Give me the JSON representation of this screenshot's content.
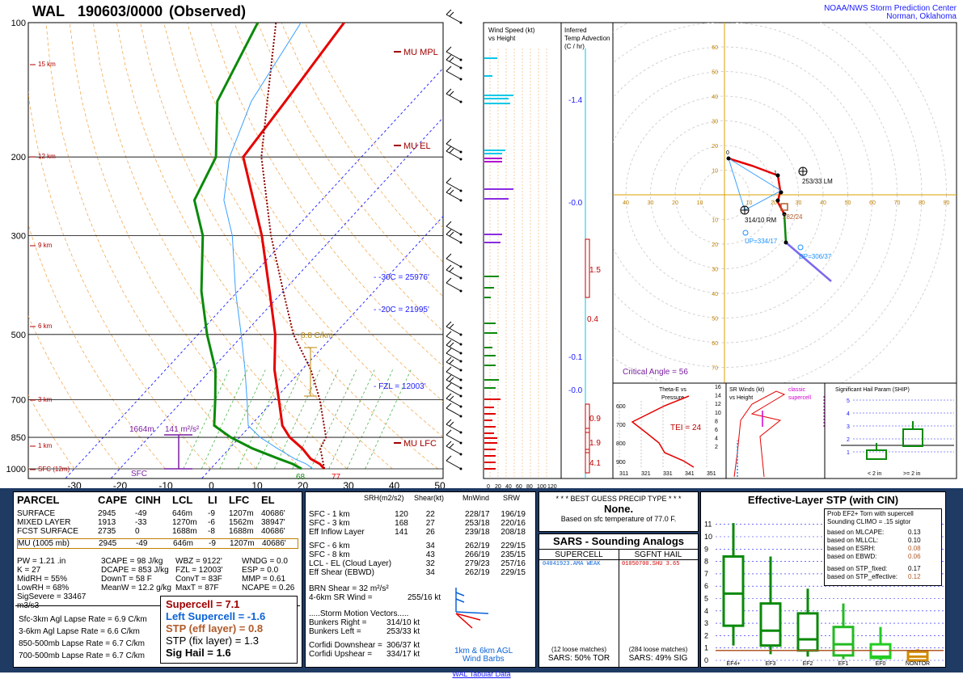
{
  "header": {
    "station": "WAL",
    "datetime": "190603/0000",
    "observed": "(Observed)",
    "org_line1": "NOAA/NWS Storm Prediction Center",
    "org_line2": "Norman, Oklahoma"
  },
  "colors": {
    "temperature": "#e60000",
    "dewpoint": "#0a8a0a",
    "parcel": "#8b0000",
    "hodo_axes": "#d8a000",
    "wind_blue": "#1a1aff",
    "bg_panel": "#1f3a63"
  },
  "chart_data": [
    {
      "type": "line",
      "title": "Skew-T",
      "y_pressure_labels": [
        "100",
        "200",
        "300",
        "500",
        "700",
        "850",
        "1000"
      ],
      "y_height_labels": [
        "15 km",
        "12 km",
        "9 km",
        "6 km",
        "3 km",
        "1 km",
        "SFC (12m)"
      ],
      "x_temp_labels": [
        "-30",
        "-20",
        "-10",
        "0",
        "10",
        "20",
        "30",
        "40",
        "50"
      ],
      "annotations": {
        "mu_mpl": "MU MPL",
        "mu_el": "MU EL",
        "mu_lfc": "MU LFC",
        "iso30": "-30C = 25976'",
        "iso20": "-20C = 21995'",
        "fzl": "FZL = 12003'",
        "lapse": "8.8 C/km",
        "srh_layer_top": "1664m",
        "srh_value": "141 m²/s²",
        "sfc": "SFC",
        "dew_sfc": "68",
        "temp_sfc": "77"
      },
      "series": [
        {
          "name": "temperature",
          "points": [
            [
              1000,
              25
            ],
            [
              975,
              23
            ],
            [
              950,
              20
            ],
            [
              900,
              16
            ],
            [
              850,
              11
            ],
            [
              800,
              7
            ],
            [
              700,
              1
            ],
            [
              600,
              -6
            ],
            [
              500,
              -13
            ],
            [
              400,
              -23
            ],
            [
              300,
              -36
            ],
            [
              250,
              -45
            ],
            [
              200,
              -56
            ],
            [
              150,
              -58
            ],
            [
              100,
              -61
            ]
          ]
        },
        {
          "name": "dewpoint",
          "points": [
            [
              1000,
              20
            ],
            [
              975,
              17
            ],
            [
              950,
              13
            ],
            [
              900,
              5
            ],
            [
              850,
              -2
            ],
            [
              800,
              -8
            ],
            [
              700,
              -13
            ],
            [
              600,
              -19
            ],
            [
              500,
              -28
            ],
            [
              400,
              -38
            ],
            [
              300,
              -49
            ],
            [
              250,
              -58
            ],
            [
              200,
              -62
            ],
            [
              150,
              -73
            ],
            [
              100,
              -80
            ]
          ]
        },
        {
          "name": "parcel",
          "points": [
            [
              1000,
              25
            ],
            [
              900,
              20
            ],
            [
              850,
              19
            ],
            [
              700,
              10
            ],
            [
              600,
              2
            ],
            [
              500,
              -9
            ],
            [
              400,
              -20
            ],
            [
              300,
              -34
            ],
            [
              200,
              -52
            ],
            [
              150,
              -62
            ],
            [
              100,
              -76
            ]
          ]
        }
      ]
    },
    {
      "type": "scatter",
      "title": "Hodograph",
      "axis_labels": [
        "10",
        "20",
        "30",
        "40",
        "50",
        "60",
        "70",
        "80",
        "90"
      ],
      "labels": {
        "lm": "253/33 LM",
        "rm": "314/10 RM",
        "mean": "282/24",
        "up": "UP=334/17",
        "dp": "DP=306/37",
        "critical_angle": "Critical Angle = 56"
      }
    }
  ],
  "right_panels": {
    "wind_speed_title": "Wind Speed (kt)",
    "wind_speed_sub": "vs Height",
    "wind_speed_ticks": [
      "20",
      "40",
      "60",
      "80",
      "100",
      "120"
    ],
    "temp_adv_title": "Inferred",
    "temp_adv_sub1": "Temp Advection",
    "temp_adv_sub2": "(C / hr)",
    "temp_adv_vals": [
      "-1.4",
      "-0.0",
      "1.5",
      "0.4",
      "-0.1",
      "-0.0",
      "0.9",
      "1.9",
      "4.1"
    ],
    "theta_title": "Theta-E vs",
    "theta_sub": "Pressure",
    "theta_tei": "TEI = 24",
    "theta_x": [
      "311",
      "321",
      "331",
      "341",
      "351"
    ],
    "theta_y": [
      "600",
      "700",
      "800",
      "900"
    ],
    "sr_title": "SR Winds (kt)",
    "sr_sub": "vs Height",
    "sr_classic": "classic",
    "sr_supercell": "supercell",
    "sr_y": [
      "16",
      "14",
      "12",
      "10",
      "8",
      "6",
      "4",
      "2"
    ],
    "ship_title": "Significant Hail Param (SHIP)",
    "ship_y": [
      "5",
      "4",
      "3",
      "2",
      "1"
    ],
    "ship_lt2": "< 2 in",
    "ship_gt2": ">= 2 in"
  },
  "parcel_table": {
    "headers": [
      "PARCEL",
      "CAPE",
      "CINH",
      "LCL",
      "LI",
      "LFC",
      "EL"
    ],
    "rows": [
      [
        "SURFACE",
        "2945",
        "-49",
        "646m",
        "-9",
        "1207m",
        "40686'"
      ],
      [
        "MIXED LAYER",
        "1913",
        "-33",
        "1270m",
        "-6",
        "1562m",
        "38947'"
      ],
      [
        "FCST SURFACE",
        "2735",
        "0",
        "1688m",
        "-8",
        "1688m",
        "40686'"
      ],
      [
        "MU    (1005 mb)",
        "2945",
        "-49",
        "646m",
        "-9",
        "1207m",
        "40686'"
      ]
    ],
    "indices_left": [
      "PW = 1.21 .in",
      "K = 27",
      "MidRH = 55%",
      "LowRH = 68%",
      "SigSevere = 33467 m3/s3"
    ],
    "indices_mid": [
      "3CAPE = 98 J/kg",
      "DCAPE = 853 J/kg",
      "DownT = 58 F",
      "MeanW = 12.2 g/kg"
    ],
    "indices_mid2": [
      "WBZ = 9122'",
      "FZL = 12003'",
      "ConvT = 83F",
      "MaxT = 87F"
    ],
    "indices_right": [
      "WNDG = 0.0",
      "ESP = 0.0",
      "MMP = 0.61",
      "NCAPE = 0.26"
    ],
    "lapse_rates": [
      "Sfc-3km Agl Lapse Rate = 6.9 C/km",
      "3-6km Agl Lapse Rate = 6.6 C/km",
      "850-500mb Lapse Rate = 6.7 C/km",
      "700-500mb Lapse Rate = 6.7 C/km"
    ],
    "supercell": "Supercell = 7.1",
    "left_supercell": "Left Supercell = -1.6",
    "stp_eff": "STP (eff layer) = 0.8",
    "stp_fix": "STP (fix layer) = 1.3",
    "sig_hail": "Sig Hail = 1.6"
  },
  "shear_table": {
    "headers": [
      "SRH(m2/s2)",
      "Shear(kt)",
      "MnWind",
      "SRW"
    ],
    "rows": [
      [
        "SFC - 1 km",
        "120",
        "22",
        "228/17",
        "196/19"
      ],
      [
        "SFC - 3 km",
        "168",
        "27",
        "253/18",
        "220/16"
      ],
      [
        "Eff Inflow Layer",
        "141",
        "26",
        "239/18",
        "208/18"
      ],
      [
        "SFC - 6 km",
        "",
        "34",
        "262/19",
        "229/15"
      ],
      [
        "SFC - 8 km",
        "",
        "43",
        "266/19",
        "235/15"
      ],
      [
        "LCL - EL (Cloud Layer)",
        "",
        "32",
        "279/23",
        "257/16"
      ],
      [
        "Eff Shear (EBWD)",
        "",
        "34",
        "262/19",
        "229/15"
      ]
    ],
    "brn": "BRN Shear = 32 m²/s²",
    "sr_wind": "4-6km SR Wind =",
    "sr_wind_val": "255/16 kt",
    "storm_vectors": ".....Storm Motion Vectors.....",
    "bunkers_right": "Bunkers Right =",
    "bunkers_right_val": "314/10 kt",
    "bunkers_left": "Bunkers Left =",
    "bunkers_left_val": "253/33 kt",
    "corfidi_down": "Corfidi Downshear =",
    "corfidi_down_val": "306/37 kt",
    "corfidi_up": "Corfidi Upshear =",
    "corfidi_up_val": "334/17 kt",
    "barb_caption1": "1km & 6km AGL",
    "barb_caption2": "Wind Barbs"
  },
  "precip": {
    "title": "* * * BEST GUESS PRECIP TYPE * * *",
    "value": "None.",
    "note": "Based on sfc temperature of 77.0 F."
  },
  "sars": {
    "title": "SARS - Sounding Analogs",
    "col1": "SUPERCELL",
    "col2": "SGFNT HAIL",
    "item1": "04041923.AMA  WEAK",
    "item2": "01050700.SHU  3.65",
    "matches1": "(12 loose matches)",
    "matches2": "(284 loose matches)",
    "pct1": "SARS:  50% TOR",
    "pct2": "SARS:  49% SIG"
  },
  "stp_panel": {
    "title": "Effective-Layer STP (with CIN)",
    "prob_line1": "Prob EF2+ Torn with supercell",
    "prob_line2": "Sounding CLIMO = .15 sigtor",
    "rows": [
      [
        "based on MLCAPE:",
        "0.13"
      ],
      [
        "based on MLLCL:",
        "0.10"
      ],
      [
        "based on ESRH:",
        "0.08"
      ],
      [
        "based on EBWD:",
        "0.06"
      ],
      [
        "based on STP_fixed:",
        "0.17"
      ],
      [
        "based on STP_effective:",
        "0.12"
      ]
    ],
    "y_labels": [
      "11",
      "10",
      "9",
      "8",
      "7",
      "6",
      "5",
      "4",
      "3",
      "2",
      "1",
      "0"
    ],
    "x_labels": [
      "EF4+",
      "EF3",
      "EF2",
      "EF1",
      "EF0",
      "NONTOR"
    ]
  },
  "footer": "WAL Tabular Data"
}
